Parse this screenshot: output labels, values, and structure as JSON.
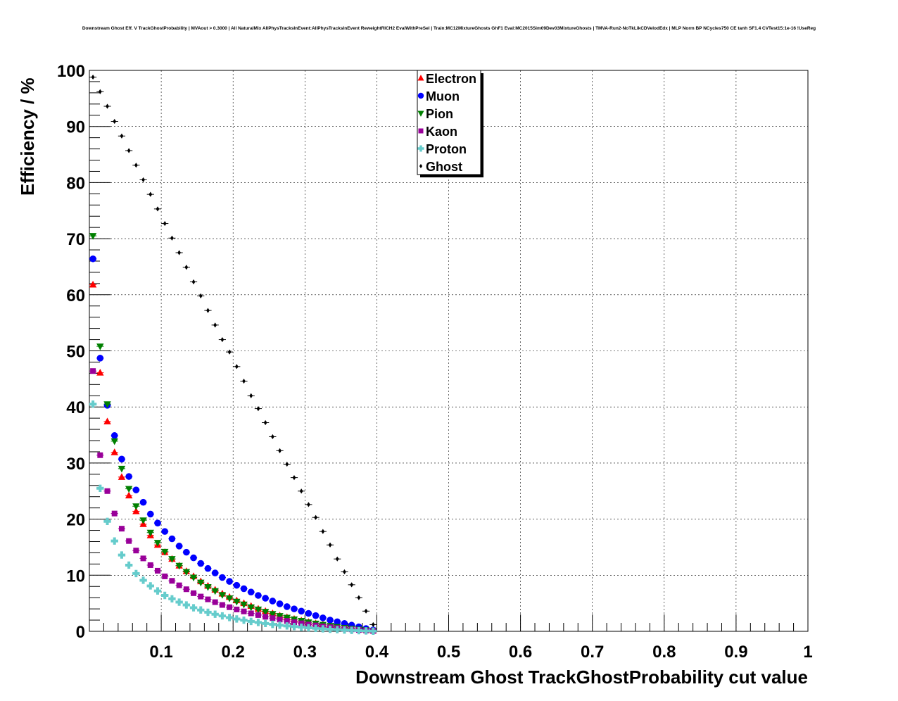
{
  "chart_data": {
    "type": "scatter",
    "title": "Downstream Ghost Eff. V TrackGhostProbability | MVAout > 0.3000 | All NaturalMix AllPhysTracksInEvent:AllPhysTracksInEvent ReweightRICH2 EvalWithPreSel | Train:MC12MixtureGhosts GhF1 Eval:MC2015Sim09Dev03MixtureGhosts | TMVA-Run2-NoTkLikCDVelodEdx | MLP Norm BP NCycles750 CE tanh SF1.4 CVTest15:1e-16 !UseReg",
    "xlabel": "Downstream Ghost TrackGhostProbability cut value",
    "ylabel": "Efficiency / %",
    "xlim": [
      0,
      1
    ],
    "ylim": [
      0,
      100
    ],
    "xticks": [
      0.1,
      0.2,
      0.3,
      0.4,
      0.5,
      0.6,
      0.7,
      0.8,
      0.9,
      1
    ],
    "xtick_labels": [
      "0.1",
      "0.2",
      "0.3",
      "0.4",
      "0.5",
      "0.6",
      "0.7",
      "0.8",
      "0.9",
      "1"
    ],
    "yticks": [
      0,
      10,
      20,
      30,
      40,
      50,
      60,
      70,
      80,
      90,
      100
    ],
    "ytick_labels": [
      "0",
      "10",
      "20",
      "30",
      "40",
      "50",
      "60",
      "70",
      "80",
      "90",
      "100"
    ],
    "grid": true,
    "legend_position": "top-center",
    "x": [
      0.005,
      0.015,
      0.025,
      0.035,
      0.045,
      0.055,
      0.065,
      0.075,
      0.085,
      0.095,
      0.105,
      0.115,
      0.125,
      0.135,
      0.145,
      0.155,
      0.165,
      0.175,
      0.185,
      0.195,
      0.205,
      0.215,
      0.225,
      0.235,
      0.245,
      0.255,
      0.265,
      0.275,
      0.285,
      0.295,
      0.305,
      0.315,
      0.325,
      0.335,
      0.345,
      0.355,
      0.365,
      0.375,
      0.385,
      0.395
    ],
    "series": [
      {
        "name": "Electron",
        "marker": "triangle-up",
        "color": "#ff0000",
        "values": [
          61.8,
          46.1,
          37.4,
          31.9,
          27.5,
          24.2,
          21.4,
          19.1,
          17.1,
          15.4,
          14.1,
          12.9,
          11.7,
          10.7,
          9.8,
          8.9,
          8.1,
          7.4,
          6.7,
          6.1,
          5.5,
          5.0,
          4.5,
          4.0,
          3.6,
          3.2,
          2.8,
          2.5,
          2.2,
          1.9,
          1.65,
          1.4,
          1.2,
          1.0,
          0.82,
          0.65,
          0.5,
          0.37,
          0.25,
          0.12
        ]
      },
      {
        "name": "Muon",
        "marker": "circle",
        "color": "#0000ff",
        "values": [
          66.4,
          48.7,
          40.3,
          34.9,
          30.7,
          27.6,
          25.2,
          23.0,
          20.9,
          19.3,
          17.8,
          16.5,
          15.2,
          14.1,
          13.1,
          12.1,
          11.2,
          10.4,
          9.6,
          8.9,
          8.2,
          7.6,
          7.0,
          6.4,
          5.9,
          5.4,
          4.9,
          4.4,
          4.0,
          3.6,
          3.2,
          2.8,
          2.4,
          2.0,
          1.7,
          1.4,
          1.1,
          0.8,
          0.5,
          0.25
        ]
      },
      {
        "name": "Pion",
        "marker": "triangle-down",
        "color": "#008000",
        "values": [
          70.5,
          50.8,
          40.5,
          33.9,
          29.0,
          25.4,
          22.3,
          19.8,
          17.6,
          15.8,
          14.2,
          12.9,
          11.7,
          10.6,
          9.6,
          8.7,
          7.9,
          7.2,
          6.5,
          5.9,
          5.3,
          4.8,
          4.3,
          3.9,
          3.5,
          3.1,
          2.75,
          2.45,
          2.15,
          1.88,
          1.62,
          1.4,
          1.18,
          0.98,
          0.8,
          0.63,
          0.48,
          0.35,
          0.22,
          0.1
        ]
      },
      {
        "name": "Kaon",
        "marker": "square",
        "color": "#990099",
        "values": [
          46.4,
          31.4,
          25.0,
          21.0,
          18.3,
          16.1,
          14.4,
          13.0,
          11.8,
          10.8,
          9.8,
          9.0,
          8.2,
          7.5,
          6.8,
          6.2,
          5.7,
          5.2,
          4.7,
          4.3,
          3.9,
          3.55,
          3.2,
          2.9,
          2.6,
          2.35,
          2.1,
          1.85,
          1.62,
          1.42,
          1.22,
          1.04,
          0.88,
          0.73,
          0.59,
          0.46,
          0.35,
          0.24,
          0.15,
          0.07
        ]
      },
      {
        "name": "Proton",
        "marker": "cross",
        "color": "#66cccc",
        "values": [
          40.5,
          25.5,
          19.6,
          16.1,
          13.6,
          11.8,
          10.3,
          9.1,
          8.1,
          7.2,
          6.4,
          5.8,
          5.2,
          4.7,
          4.2,
          3.8,
          3.4,
          3.05,
          2.75,
          2.45,
          2.2,
          1.98,
          1.77,
          1.58,
          1.4,
          1.24,
          1.09,
          0.96,
          0.84,
          0.73,
          0.63,
          0.53,
          0.45,
          0.37,
          0.3,
          0.23,
          0.17,
          0.12,
          0.07,
          0.03
        ]
      },
      {
        "name": "Ghost",
        "marker": "diamond",
        "color": "#000000",
        "values": [
          98.8,
          96.2,
          93.6,
          90.9,
          88.3,
          85.7,
          83.1,
          80.5,
          77.9,
          75.3,
          72.7,
          70.1,
          67.5,
          64.9,
          62.3,
          59.8,
          57.2,
          54.6,
          52.0,
          49.8,
          47.2,
          44.6,
          42.0,
          39.7,
          37.2,
          34.7,
          32.2,
          29.8,
          27.4,
          25.0,
          22.6,
          20.3,
          17.8,
          15.4,
          12.9,
          10.6,
          8.3,
          6.0,
          3.6,
          1.2
        ]
      }
    ]
  }
}
